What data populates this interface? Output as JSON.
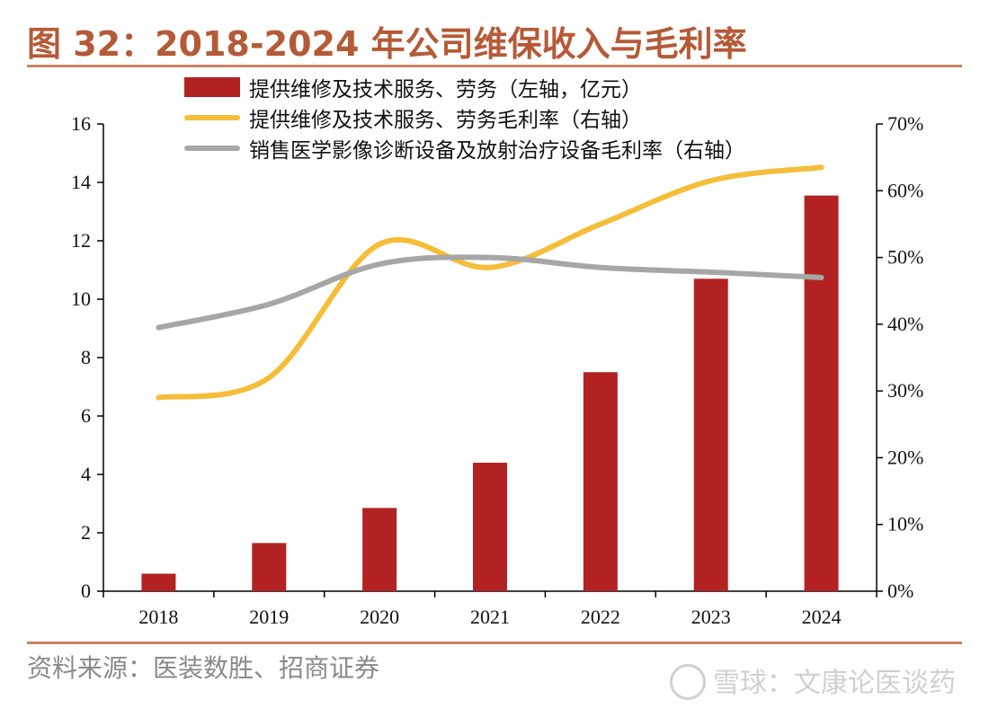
{
  "figure": {
    "title": "图 32：2018-2024 年公司维保收入与毛利率",
    "source": "资料来源：医装数胜、招商证券",
    "watermark": "雪球：文康论医谈药"
  },
  "chart_data": {
    "type": "bar",
    "categories": [
      "2018",
      "2019",
      "2020",
      "2021",
      "2022",
      "2023",
      "2024"
    ],
    "series": [
      {
        "name": "提供维修及技术服务、劳务（左轴，亿元）",
        "kind": "bar",
        "axis": "left",
        "color": "#b22222",
        "values": [
          0.6,
          1.65,
          2.85,
          4.4,
          7.5,
          10.7,
          13.55
        ]
      },
      {
        "name": "提供维修及技术服务、劳务毛利率（右轴）",
        "kind": "line",
        "axis": "right",
        "color": "#f5bd38",
        "values": [
          0.29,
          0.32,
          0.52,
          0.485,
          0.55,
          0.615,
          0.635
        ]
      },
      {
        "name": "销售医学影像诊断设备及放射治疗设备毛利率（右轴）",
        "kind": "line",
        "axis": "right",
        "color": "#a6a6a6",
        "values": [
          0.395,
          0.43,
          0.49,
          0.5,
          0.485,
          0.478,
          0.47
        ]
      }
    ],
    "ylim_left": [
      0,
      16
    ],
    "yticks_left": [
      "0",
      "2",
      "4",
      "6",
      "8",
      "10",
      "12",
      "14",
      "16"
    ],
    "ylim_right": [
      0,
      0.7
    ],
    "yticks_right": [
      "0%",
      "10%",
      "20%",
      "30%",
      "40%",
      "50%",
      "60%",
      "70%"
    ],
    "grid": false,
    "legend_position": "top"
  }
}
